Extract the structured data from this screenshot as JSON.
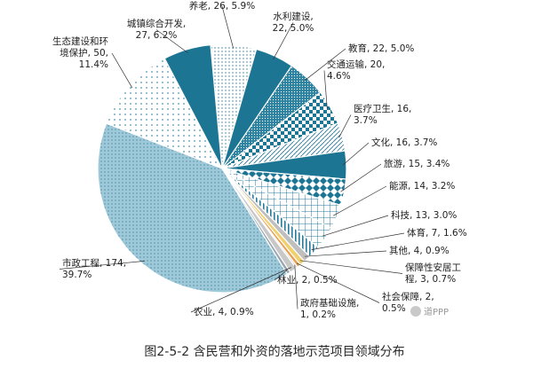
{
  "chart_data": {
    "type": "pie",
    "categories": [
      "养老",
      "水利建设",
      "教育",
      "交通运输",
      "医疗卫生",
      "文化",
      "旅游",
      "能源",
      "科技",
      "体育",
      "其他",
      "保障性安居工程",
      "社会保障",
      "政府基础设施",
      "农业",
      "林业",
      "市政工程",
      "生态建设和环境保护",
      "城镇综合开发"
    ],
    "values": [
      26,
      22,
      22,
      20,
      16,
      16,
      15,
      14,
      13,
      7,
      4,
      3,
      2,
      1,
      4,
      2,
      174,
      50,
      27
    ],
    "labels": [
      "养老, 26, 5.9%",
      "水利建设, 22, 5.0%",
      "教育, 22, 5.0%",
      "交通运输, 20, 4.6%",
      "医疗卫生, 16, 3.7%",
      "文化, 16, 3.7%",
      "旅游, 15, 3.4%",
      "能源, 14, 3.2%",
      "科技, 13, 3.0%",
      "体育, 7, 1.6%",
      "其他, 4, 0.9%",
      "保障性安居工程, 3, 0.7%",
      "社会保障, 2, 0.5%",
      "政府基础设施, 1, 0.2%",
      "农业, 4, 0.9%",
      "林业, 2, 0.5%",
      "市政工程, 174, 39.7%",
      "生态建设和环境保护, 50, 11.4%",
      "城镇综合开发, 27, 6.2%"
    ]
  },
  "caption": "图2-5-2 含民营和外资的落地示范项目领域分布",
  "watermark": "道PPP",
  "colors": {
    "teal": "#1f7f9e",
    "tealDark": "#16617a",
    "light": "#9fd2e3",
    "orange": "#e8a050",
    "yellow": "#f0d070",
    "gray": "#bdbdbd"
  }
}
